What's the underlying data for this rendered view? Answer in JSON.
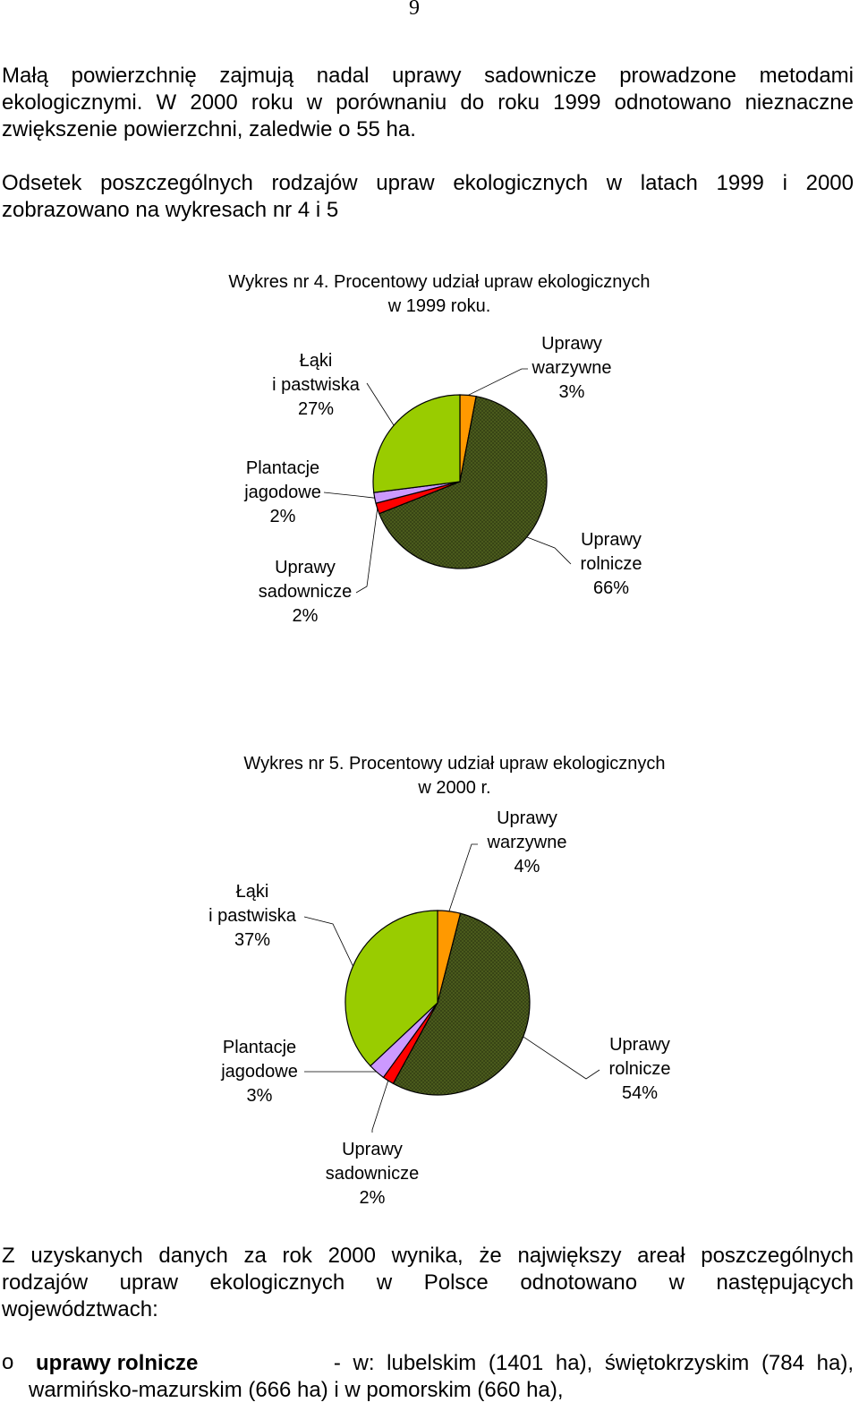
{
  "page_number": "9",
  "para1": [
    "Małą powierzchnię zajmują nadal uprawy sadownicze prowadzone metodami",
    "ekologicznymi. W 2000 roku w porównaniu do roku 1999 odnotowano nieznaczne",
    "zwiększenie powierzchni, zaledwie o 55 ha."
  ],
  "para2": [
    "Odsetek poszczególnych rodzajów upraw ekologicznych w latach 1999 i 2000",
    "zobrazowano na wykresach nr 4 i 5"
  ],
  "chart_data": [
    {
      "type": "pie",
      "title": [
        "Wykres nr 4. Procentowy udział upraw ekologicznych",
        "w 1999 roku."
      ],
      "slices": [
        {
          "name": [
            "Uprawy",
            "warzywne"
          ],
          "value": 3,
          "label": "3%",
          "color": "#ff9900"
        },
        {
          "name": [
            "Uprawy",
            "rolnicze"
          ],
          "value": 66,
          "label": "66%",
          "color": "#4a5a1c"
        },
        {
          "name": [
            "Uprawy",
            "sadownicze"
          ],
          "value": 2,
          "label": "2%",
          "color": "#ff0000"
        },
        {
          "name": [
            "Plantacje",
            "jagodowe"
          ],
          "value": 2,
          "label": "2%",
          "color": "#cc99ff"
        },
        {
          "name": [
            "Łąki",
            "i pastwiska"
          ],
          "value": 27,
          "label": "27%",
          "color": "#99cc00"
        }
      ]
    },
    {
      "type": "pie",
      "title": [
        "Wykres nr 5. Procentowy udział upraw ekologicznych",
        "w 2000 r."
      ],
      "slices": [
        {
          "name": [
            "Uprawy",
            "warzywne"
          ],
          "value": 4,
          "label": "4%",
          "color": "#ff9900"
        },
        {
          "name": [
            "Uprawy",
            "rolnicze"
          ],
          "value": 54,
          "label": "54%",
          "color": "#4a5a1c"
        },
        {
          "name": [
            "Uprawy",
            "sadownicze"
          ],
          "value": 2,
          "label": "2%",
          "color": "#ff0000"
        },
        {
          "name": [
            "Plantacje",
            "jagodowe"
          ],
          "value": 3,
          "label": "3%",
          "color": "#cc99ff"
        },
        {
          "name": [
            "Łąki",
            "i pastwiska"
          ],
          "value": 37,
          "label": "37%",
          "color": "#99cc00"
        }
      ]
    }
  ],
  "para3": [
    "Z uzyskanych danych za rok 2000 wynika, że największy areał poszczególnych",
    "rodzajów upraw ekologicznych w Polsce odnotowano w następujących",
    "województwach:"
  ],
  "bullet": {
    "marker": "o",
    "term": "uprawy rolnicze",
    "line1": "- w: lubelskim (1401 ha), świętokrzyskim (784 ha),",
    "line2": "warmińsko-mazurskim (666 ha) i w  pomorskim (660 ha),"
  }
}
